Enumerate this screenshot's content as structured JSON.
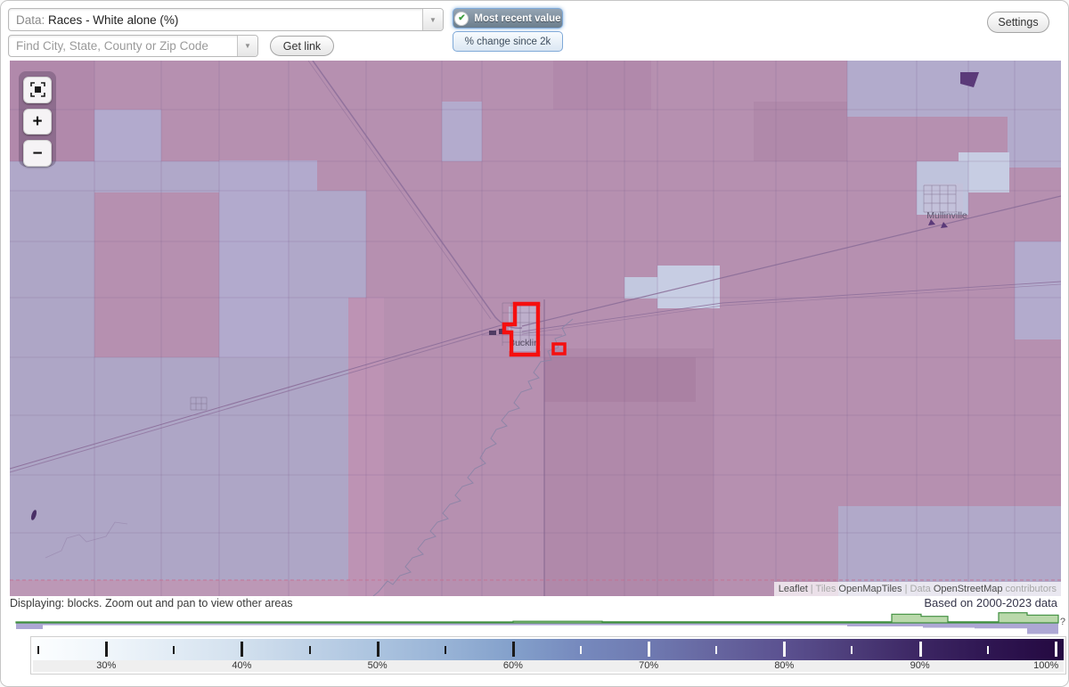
{
  "header": {
    "data_select": {
      "label": "Data:",
      "value": "Races - White alone (%)"
    },
    "search": {
      "placeholder": "Find City, State, County or Zip Code"
    },
    "get_link_label": "Get link",
    "toggle_recent": {
      "label": "Most recent value",
      "check_glyph": "✔",
      "selected": true
    },
    "toggle_change": {
      "label": "% change since 2k"
    },
    "settings_label": "Settings",
    "dropdown_arrow_glyph": "▼"
  },
  "map": {
    "controls": {
      "zoom_in_glyph": "+",
      "zoom_out_glyph": "−"
    },
    "labels": {
      "town_primary": "Bucklin",
      "town_secondary": "Mullinville"
    },
    "attribution_parts": [
      {
        "text": "Leaflet",
        "muted": false
      },
      {
        "text": " | ",
        "muted": true
      },
      {
        "text": "Tiles ",
        "muted": true
      },
      {
        "text": "OpenMapTiles",
        "muted": false
      },
      {
        "text": " | ",
        "muted": true
      },
      {
        "text": "Data ",
        "muted": true
      },
      {
        "text": "OpenStreetMap",
        "muted": false
      },
      {
        "text": " contributors",
        "muted": true
      }
    ],
    "highlight_color": "#f50f0f"
  },
  "footer": {
    "displaying_text": "Displaying: blocks. Zoom out and pan to view other areas",
    "based_on_text": "Based on 2000-2023 data",
    "help_label": "?"
  },
  "scale": {
    "min_pct": 24.6,
    "max_pct": 100.6,
    "major_ticks": [
      30,
      40,
      50,
      60,
      70,
      80,
      90,
      100
    ],
    "minor_ticks": [
      25,
      35,
      45,
      55,
      65,
      75,
      85,
      95
    ],
    "tick_labels": [
      "30%",
      "40%",
      "50%",
      "60%",
      "70%",
      "80%",
      "90%",
      "100%"
    ],
    "light_tick_from": 61,
    "gradient_stops": [
      {
        "pct": 24.6,
        "color": "#fcfeff"
      },
      {
        "pct": 30,
        "color": "#f0f6fb"
      },
      {
        "pct": 40,
        "color": "#d2e0ee"
      },
      {
        "pct": 50,
        "color": "#abc3df"
      },
      {
        "pct": 55,
        "color": "#98b3d6"
      },
      {
        "pct": 60,
        "color": "#83a0cb"
      },
      {
        "pct": 65,
        "color": "#7689bd"
      },
      {
        "pct": 70,
        "color": "#6f7ab1"
      },
      {
        "pct": 75,
        "color": "#66659f"
      },
      {
        "pct": 80,
        "color": "#5b5190"
      },
      {
        "pct": 85,
        "color": "#4c3c79"
      },
      {
        "pct": 90,
        "color": "#3c2663"
      },
      {
        "pct": 95,
        "color": "#2f1652"
      },
      {
        "pct": 100,
        "color": "#250a42"
      }
    ]
  },
  "histogram": {
    "green_stroke": "#3f8f3f",
    "green_fill": "#b6d7a7",
    "purple_fill": "#a49dcf",
    "green_steps": [
      [
        2,
        560,
        1
      ],
      [
        560,
        660,
        1.8
      ],
      [
        660,
        985,
        1.2
      ],
      [
        985,
        1018,
        9.7
      ],
      [
        1018,
        1048,
        7.3
      ],
      [
        1048,
        1105,
        1.2
      ],
      [
        1105,
        1137,
        11.3
      ],
      [
        1137,
        1172,
        8.7
      ]
    ],
    "purple_steps": [
      [
        2,
        32,
        7
      ],
      [
        32,
        935,
        2.6
      ],
      [
        935,
        1020,
        4
      ],
      [
        1020,
        1078,
        5.5
      ],
      [
        1078,
        1137,
        6.2
      ],
      [
        1137,
        1172,
        12.5
      ]
    ]
  }
}
